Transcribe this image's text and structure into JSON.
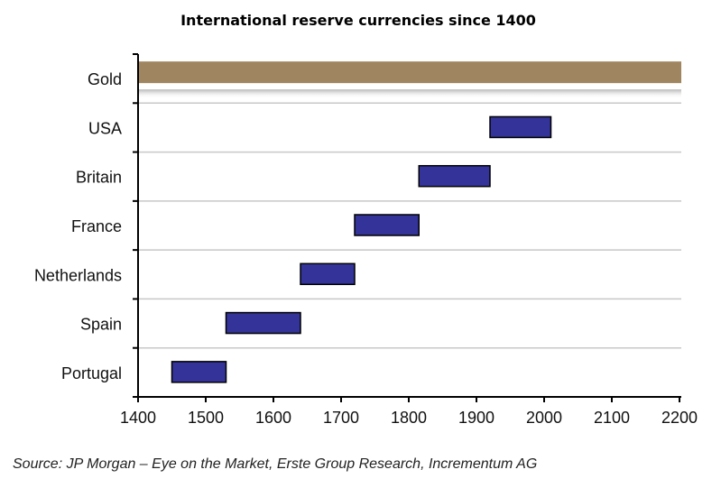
{
  "chart_data": {
    "type": "bar",
    "orientation": "horizontal-range",
    "title": "International reserve currencies since 1400",
    "categories": [
      "Gold",
      "USA",
      "Britain",
      "France",
      "Netherlands",
      "Spain",
      "Portugal"
    ],
    "series": [
      {
        "ranges": [
          [
            1400,
            2200
          ],
          [
            1920,
            2010
          ],
          [
            1815,
            1920
          ],
          [
            1720,
            1815
          ],
          [
            1640,
            1720
          ],
          [
            1530,
            1640
          ],
          [
            1450,
            1530
          ]
        ]
      }
    ],
    "xlim": [
      1400,
      2200
    ],
    "xticks": [
      "1400",
      "1500",
      "1600",
      "1700",
      "1800",
      "1900",
      "2000",
      "2100",
      "2200"
    ],
    "grid": true,
    "colors": {
      "gold": "#a08660",
      "currency": "#333399",
      "border": "#000000",
      "grid": "#c8c8c8"
    }
  },
  "source": "Source: JP Morgan – Eye on the Market, Erste Group Research, Incrementum AG"
}
